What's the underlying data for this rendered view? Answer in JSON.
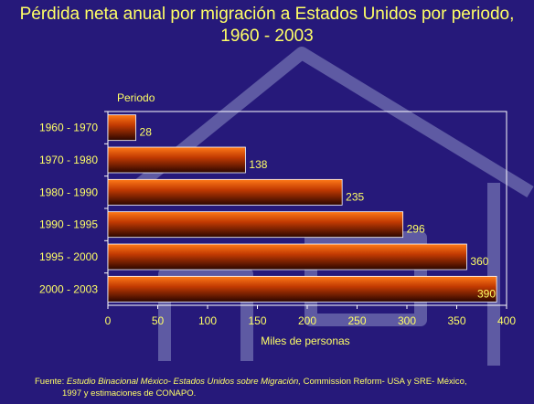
{
  "colors": {
    "background": "#26197a",
    "text": "#ffff66",
    "bar_dark": "#2a0500",
    "bar_mid": "#c23a02",
    "bar_light": "#ff7a18",
    "plot_frame": "#ffffff",
    "watermark": "#8d8fc4"
  },
  "chart_data": {
    "type": "bar",
    "orientation": "horizontal",
    "title_line1": "Pérdida neta anual por migración a Estados Unidos por periodo,",
    "title_line2": "1960 - 2003",
    "category_axis_label": "Periodo",
    "value_axis_label": "Miles de personas",
    "categories": [
      "1960 - 1970",
      "1970 - 1980",
      "1980 - 1990",
      "1990 - 1995",
      "1995 - 2000",
      "2000 - 2003"
    ],
    "values": [
      28,
      138,
      235,
      296,
      360,
      390
    ],
    "data_labels": [
      "28",
      "138",
      "235",
      "296",
      "360",
      "390"
    ],
    "xlim": [
      0,
      400
    ],
    "x_ticks": [
      "0",
      "50",
      "100",
      "150",
      "200",
      "250",
      "300",
      "350",
      "400"
    ],
    "grid": false,
    "legend": "none"
  },
  "source": {
    "prefix": "Fuente: ",
    "title": "Estudio Binacional México- Estados Unidos sobre Migración,",
    "rest": " Commission Reform- USA y SRE- México,",
    "line2": "1997 y estimaciones de CONAPO."
  }
}
